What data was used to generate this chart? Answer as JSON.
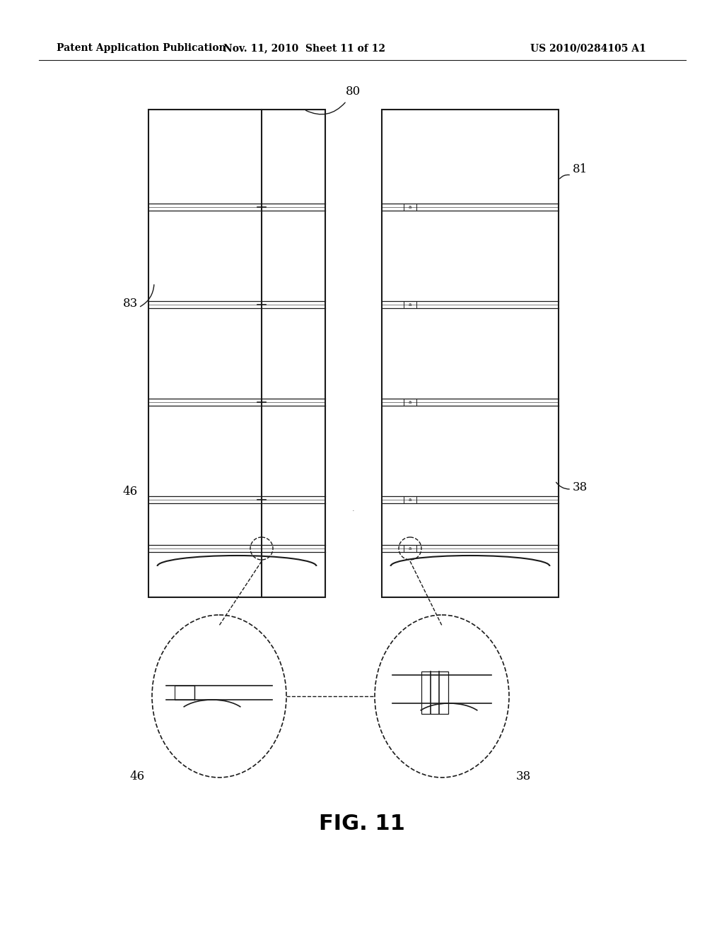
{
  "header_left": "Patent Application Publication",
  "header_center": "Nov. 11, 2010  Sheet 11 of 12",
  "header_right": "US 2010/0284105 A1",
  "fig_label": "FIG. 11",
  "bg_color": "#ffffff",
  "line_color": "#1a1a1a",
  "label_80": "80",
  "label_81": "81",
  "label_83": "83",
  "label_46": "46",
  "label_38": "38"
}
